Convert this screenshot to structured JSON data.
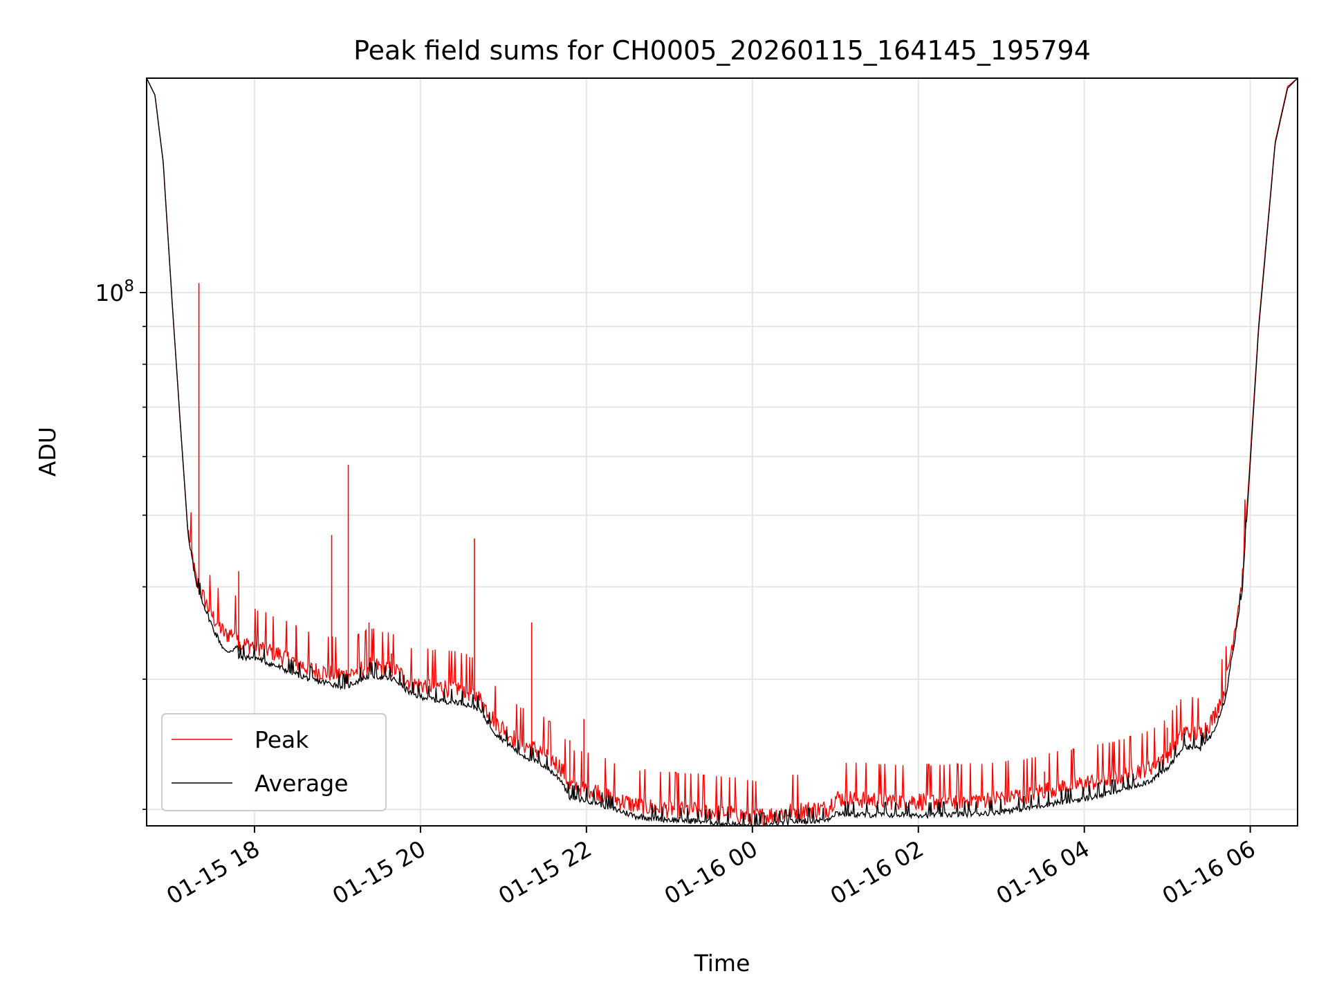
{
  "chart_data": {
    "type": "line",
    "title": "Peak field sums for CH0005_20260115_164145_195794",
    "xlabel": "Time",
    "ylabel": "ADU",
    "yscale": "log",
    "ylim": [
      19000000,
      195000000
    ],
    "xlim_hours": [
      16.7,
      30.57
    ],
    "x_unit": "hours since 2026-01-15 00:00",
    "x_ticks": [
      {
        "hour": 18,
        "label": "01-15 18"
      },
      {
        "hour": 20,
        "label": "01-15 20"
      },
      {
        "hour": 22,
        "label": "01-15 22"
      },
      {
        "hour": 24,
        "label": "01-16 00"
      },
      {
        "hour": 26,
        "label": "01-16 02"
      },
      {
        "hour": 28,
        "label": "01-16 04"
      },
      {
        "hour": 30,
        "label": "01-16 06"
      }
    ],
    "y_major_ticks": [
      {
        "value": 100000000,
        "base": "10",
        "exp": "8"
      }
    ],
    "y_minor_ticks": [
      20000000,
      30000000,
      40000000,
      50000000,
      60000000,
      70000000,
      80000000,
      90000000,
      200000000
    ],
    "grid": true,
    "legend_position": "lower-left",
    "colors": {
      "peak": "#ff0000",
      "average": "#000000",
      "grid": "#e6e6e6"
    },
    "series": [
      {
        "name": "Peak",
        "color": "#ff0000",
        "x": [
          16.7,
          16.8,
          16.9,
          17.0,
          17.1,
          17.2,
          17.3,
          17.5,
          17.65,
          17.8,
          17.81,
          18.0,
          18.3,
          18.7,
          19.1,
          19.4,
          19.7,
          19.9,
          20.2,
          20.5,
          20.7,
          20.9,
          21.2,
          21.5,
          21.7,
          21.8,
          22.1,
          22.3,
          22.6,
          23.0,
          23.4,
          23.8,
          24.0,
          24.2,
          24.5,
          24.9,
          25.0,
          25.3,
          25.8,
          26.3,
          26.8,
          27.3,
          27.6,
          28.0,
          28.4,
          28.8,
          29.0,
          29.2,
          29.4,
          29.55,
          29.7,
          29.9,
          30.1,
          30.3,
          30.45,
          30.57
        ],
        "y": [
          195000000,
          185000000,
          150000000,
          100000000,
          68000000,
          47000000,
          40000000,
          36000000,
          34000000,
          34500000,
          33000000,
          33000000,
          32000000,
          30500000,
          30000000,
          31000000,
          30500000,
          29200000,
          29000000,
          28800000,
          28000000,
          26000000,
          24300000,
          23500000,
          22500000,
          21300000,
          21000000,
          20500000,
          20000000,
          19800000,
          19700000,
          19500000,
          19300000,
          19400000,
          19700000,
          19800000,
          20500000,
          20400000,
          20300000,
          20300000,
          20400000,
          20700000,
          21100000,
          21400000,
          21900000,
          22600000,
          23500000,
          25200000,
          25000000,
          26200000,
          29000000,
          40000000,
          90000000,
          160000000,
          190000000,
          195000000
        ],
        "spikes": [
          {
            "x": 17.33,
            "y": 103000000
          },
          {
            "x": 17.81,
            "y": 42000000
          },
          {
            "x": 18.5,
            "y": 35500000
          },
          {
            "x": 18.93,
            "y": 47000000
          },
          {
            "x": 19.13,
            "y": 58500000
          },
          {
            "x": 19.38,
            "y": 35800000
          },
          {
            "x": 19.65,
            "y": 32500000
          },
          {
            "x": 20.65,
            "y": 46500000
          },
          {
            "x": 21.34,
            "y": 35800000
          },
          {
            "x": 21.8,
            "y": 24800000
          },
          {
            "x": 21.97,
            "y": 26500000
          },
          {
            "x": 27.52,
            "y": 22500000
          },
          {
            "x": 29.0,
            "y": 25800000
          },
          {
            "x": 30.18,
            "y": 114000000
          }
        ]
      },
      {
        "name": "Average",
        "color": "#000000",
        "x": [
          16.7,
          16.8,
          16.9,
          17.0,
          17.1,
          17.2,
          17.3,
          17.5,
          17.65,
          17.8,
          17.81,
          18.0,
          18.3,
          18.7,
          19.1,
          19.4,
          19.7,
          19.9,
          20.2,
          20.5,
          20.7,
          20.9,
          21.2,
          21.5,
          21.7,
          21.8,
          22.1,
          22.3,
          22.6,
          23.0,
          23.4,
          23.8,
          24.0,
          24.2,
          24.5,
          24.9,
          25.0,
          25.3,
          25.8,
          26.3,
          26.8,
          27.3,
          27.6,
          28.0,
          28.4,
          28.8,
          29.0,
          29.2,
          29.4,
          29.55,
          29.7,
          29.9,
          30.1,
          30.3,
          30.45,
          30.57
        ],
        "y": [
          195000000,
          185000000,
          150000000,
          100000000,
          68000000,
          47000000,
          40000000,
          35000000,
          32500000,
          33000000,
          32000000,
          32000000,
          31000000,
          29800000,
          29200000,
          30300000,
          29800000,
          28500000,
          28000000,
          27800000,
          27300000,
          25300000,
          23700000,
          22800000,
          21800000,
          20700000,
          20400000,
          20000000,
          19500000,
          19300000,
          19200000,
          19000000,
          18900000,
          19000000,
          19200000,
          19300000,
          19700000,
          19600000,
          19600000,
          19600000,
          19700000,
          20000000,
          20300000,
          20600000,
          21100000,
          21800000,
          22600000,
          24300000,
          24100000,
          25300000,
          28200000,
          39000000,
          89000000,
          159000000,
          189000000,
          195000000
        ]
      }
    ]
  }
}
